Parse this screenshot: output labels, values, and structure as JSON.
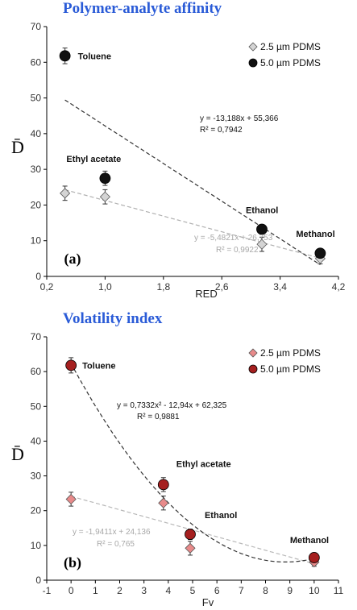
{
  "chart_data": [
    {
      "type": "scatter",
      "title": "Polymer-analyte affinity",
      "panel": "(a)",
      "xlabel": "RED",
      "ylabel": "D̄",
      "xlim": [
        0.2,
        4.2
      ],
      "ylim": [
        0,
        70
      ],
      "xticks": [
        "0,2",
        "1,0",
        "1,8",
        "2,6",
        "3,4",
        "4,2"
      ],
      "xtick_values": [
        0.2,
        1.0,
        1.8,
        2.6,
        3.4,
        4.2
      ],
      "yticks": [
        "0",
        "10",
        "20",
        "30",
        "40",
        "50",
        "60",
        "70"
      ],
      "ytick_values": [
        0,
        10,
        20,
        30,
        40,
        50,
        60,
        70
      ],
      "legend_position": "top-right",
      "series": [
        {
          "name": "2.5 µm PDMS",
          "marker": "diamond",
          "color": "#d4d4d4",
          "x": [
            0.45,
            1.0,
            3.15,
            3.95
          ],
          "y": [
            23.3,
            22.3,
            9.0,
            5.0
          ],
          "err": [
            2,
            2,
            2,
            1.5
          ],
          "trendline": {
            "kind": "linear",
            "coef": [
              -5.4821,
              26.753
            ],
            "range": [
              0.45,
              3.95
            ],
            "color": "#b0b0b0"
          }
        },
        {
          "name": "5.0 µm PDMS",
          "marker": "circle",
          "color": "#111111",
          "x": [
            0.45,
            1.0,
            3.15,
            3.95
          ],
          "y": [
            61.8,
            27.5,
            13.2,
            6.5
          ],
          "err": [
            2.2,
            2,
            1.2,
            1.2
          ],
          "trendline": {
            "kind": "linear",
            "coef": [
              -13.188,
              55.366
            ],
            "range": [
              0.45,
              3.95
            ],
            "color": "#333333"
          }
        }
      ],
      "annotations": {
        "toluene": "Toluene",
        "ethyl_acetate": "Ethyl acetate",
        "ethanol": "Ethanol",
        "methanol": "Methanol",
        "eq_black": "y = -13,188x + 55,366",
        "r2_black": "R² = 0,7942",
        "eq_gray": "y = -5,4821x + 26,753",
        "r2_gray": "R² = 0,9922"
      },
      "legend": [
        "2.5 µm PDMS",
        "5.0 µm PDMS"
      ]
    },
    {
      "type": "scatter",
      "title": "Volatility index",
      "panel": "(b)",
      "xlabel": "Fv",
      "ylabel": "D̄",
      "xlim": [
        -1,
        11
      ],
      "ylim": [
        0,
        70
      ],
      "xticks": [
        "-1",
        "0",
        "1",
        "2",
        "3",
        "4",
        "5",
        "6",
        "7",
        "8",
        "9",
        "10",
        "11"
      ],
      "xtick_values": [
        -1,
        0,
        1,
        2,
        3,
        4,
        5,
        6,
        7,
        8,
        9,
        10,
        11
      ],
      "yticks": [
        "0",
        "10",
        "20",
        "30",
        "40",
        "50",
        "60",
        "70"
      ],
      "ytick_values": [
        0,
        10,
        20,
        30,
        40,
        50,
        60,
        70
      ],
      "legend_position": "top-right",
      "series": [
        {
          "name": "2.5 µm PDMS",
          "marker": "diamond",
          "color": "#e88a8a",
          "x": [
            0,
            3.8,
            4.9,
            10
          ],
          "y": [
            23.3,
            22.2,
            9.2,
            5.2
          ],
          "err": [
            2,
            2,
            2,
            1.2
          ],
          "trendline": {
            "kind": "linear",
            "coef": [
              -1.9411,
              24.136
            ],
            "range": [
              0,
              10
            ],
            "color": "#b8b8b8"
          }
        },
        {
          "name": "5.0 µm PDMS",
          "marker": "circle",
          "color": "#a51f1f",
          "x": [
            0,
            3.8,
            4.9,
            10
          ],
          "y": [
            61.8,
            27.5,
            13.2,
            6.5
          ],
          "err": [
            2.2,
            2,
            1.5,
            1.2
          ],
          "trendline": {
            "kind": "poly2",
            "coef": [
              0.7332,
              -12.94,
              62.325
            ],
            "range": [
              0,
              10
            ],
            "color": "#333333"
          }
        }
      ],
      "annotations": {
        "toluene": "Toluene",
        "ethyl_acetate": "Ethyl acetate",
        "ethanol": "Ethanol",
        "methanol": "Methanol",
        "eq_black": "y = 0,7332x² - 12,94x + 62,325",
        "r2_black": "R² = 0,9881",
        "eq_gray": "y = -1,9411x + 24,136",
        "r2_gray": "R² = 0,765"
      },
      "legend": [
        "2.5 µm PDMS",
        "5.0 µm PDMS"
      ]
    }
  ]
}
